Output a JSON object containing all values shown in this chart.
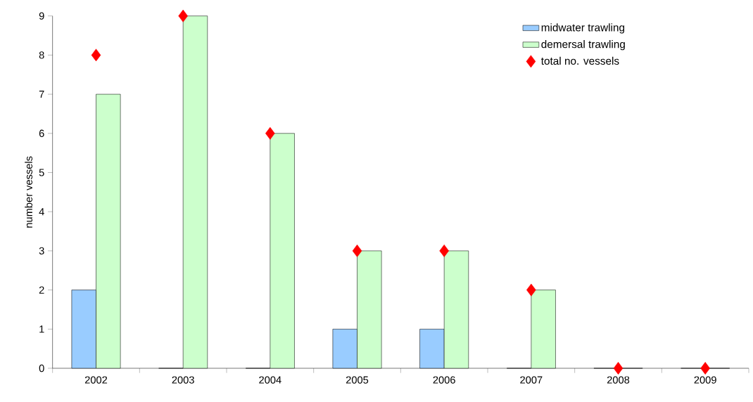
{
  "chart_data": {
    "type": "bar",
    "ylabel": "number vessels",
    "categories": [
      "2002",
      "2003",
      "2004",
      "2005",
      "2006",
      "2007",
      "2008",
      "2009"
    ],
    "series": [
      {
        "name": "midwater trawling",
        "color": "#99ccff",
        "values": [
          2,
          0,
          0,
          1,
          1,
          0,
          0,
          0
        ]
      },
      {
        "name": "demersal trawling",
        "color": "#ccffcc",
        "values": [
          7,
          9,
          6,
          3,
          3,
          2,
          0,
          0
        ]
      },
      {
        "name": "total no. vessels",
        "type": "scatter",
        "marker": "diamond",
        "color": "#ff0000",
        "values": [
          8,
          9,
          6,
          3,
          3,
          2,
          0,
          0
        ]
      }
    ],
    "ylim": [
      0,
      9
    ],
    "yticks": [
      0,
      1,
      2,
      3,
      4,
      5,
      6,
      7,
      8,
      9
    ],
    "legend": "top right"
  }
}
